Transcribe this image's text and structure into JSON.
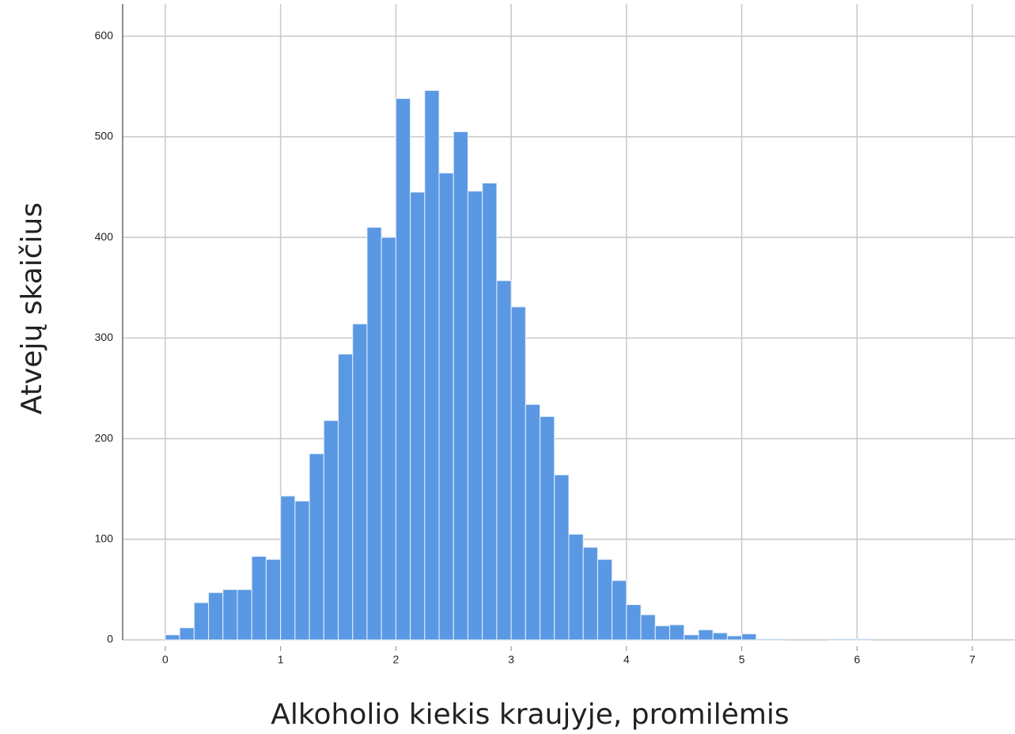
{
  "chart_data": {
    "type": "histogram",
    "x_label": "Alkoholio kiekis kraujyje, promilėmis",
    "y_label": "Atvejų skaičius",
    "bins": [
      0,
      0.125,
      0.25,
      0.375,
      0.5,
      0.625,
      0.75,
      0.875,
      1,
      1.125,
      1.25,
      1.375,
      1.5,
      1.625,
      1.75,
      1.875,
      2,
      2.125,
      2.25,
      2.375,
      2.5,
      2.625,
      2.75,
      2.875,
      3,
      3.125,
      3.25,
      3.375,
      3.5,
      3.625,
      3.75,
      3.875,
      4,
      4.125,
      4.25,
      4.375,
      4.5,
      4.625,
      4.75,
      4.875,
      5,
      5.125,
      5.25,
      5.375,
      5.5,
      5.625,
      5.75,
      5.875,
      6,
      6.125
    ],
    "values": [
      5,
      12,
      37,
      47,
      50,
      50,
      83,
      80,
      143,
      138,
      185,
      218,
      284,
      314,
      410,
      400,
      538,
      445,
      546,
      464,
      505,
      446,
      454,
      357,
      331,
      234,
      222,
      164,
      105,
      92,
      80,
      59,
      35,
      25,
      14,
      15,
      5,
      10,
      7,
      4,
      6,
      1,
      1,
      0,
      0,
      0,
      1,
      1,
      1
    ],
    "color": "#5b98e3",
    "xlim": [
      -0.37,
      7.37
    ],
    "ylim": [
      0,
      632
    ],
    "xticks": [
      0,
      1,
      2,
      3,
      4,
      5,
      6,
      7
    ],
    "yticks": [
      0,
      100,
      200,
      300,
      400,
      500,
      600
    ],
    "grid": true
  }
}
